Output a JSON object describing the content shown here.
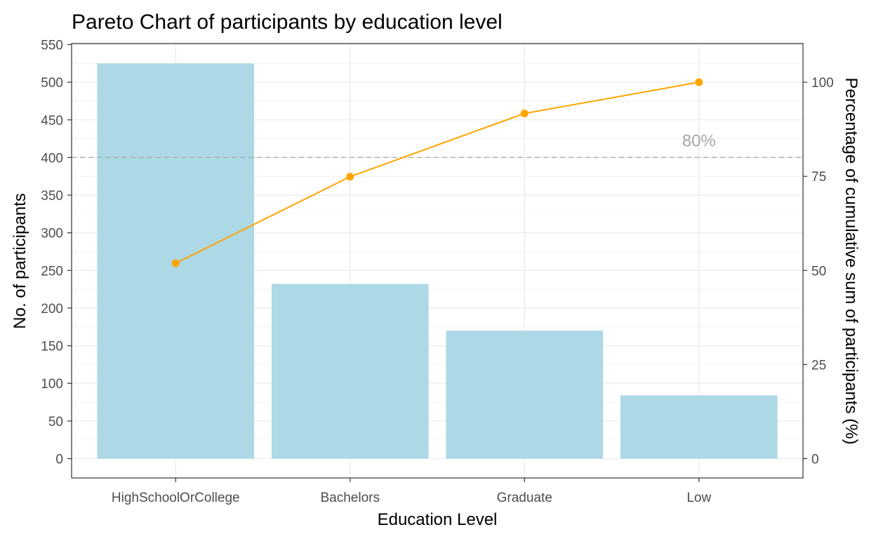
{
  "chart_data": {
    "type": "bar",
    "title": "Pareto Chart of participants by education level",
    "xlabel": "Education Level",
    "ylabel": "No. of participants",
    "y2label": "Percentage of cumulative sum of participants (%)",
    "categories": [
      "HighSchoolOrCollege",
      "Bachelors",
      "Graduate",
      "Low"
    ],
    "values": [
      525,
      232,
      170,
      84
    ],
    "cumulative_percent": [
      51.9,
      74.9,
      91.7,
      100
    ],
    "ylim": [
      0,
      550
    ],
    "y2lim": [
      0,
      110
    ],
    "y_ticks": [
      "0",
      "50",
      "100",
      "150",
      "200",
      "250",
      "300",
      "350",
      "400",
      "450",
      "500",
      "550"
    ],
    "y2_ticks": [
      "0",
      "25",
      "50",
      "75",
      "100"
    ],
    "reference_line": {
      "percent": 80,
      "label": "80%"
    },
    "grid": true,
    "colors": {
      "bar": "#add8e6",
      "line": "#ffa500",
      "reference": "#a6a6a6"
    }
  }
}
